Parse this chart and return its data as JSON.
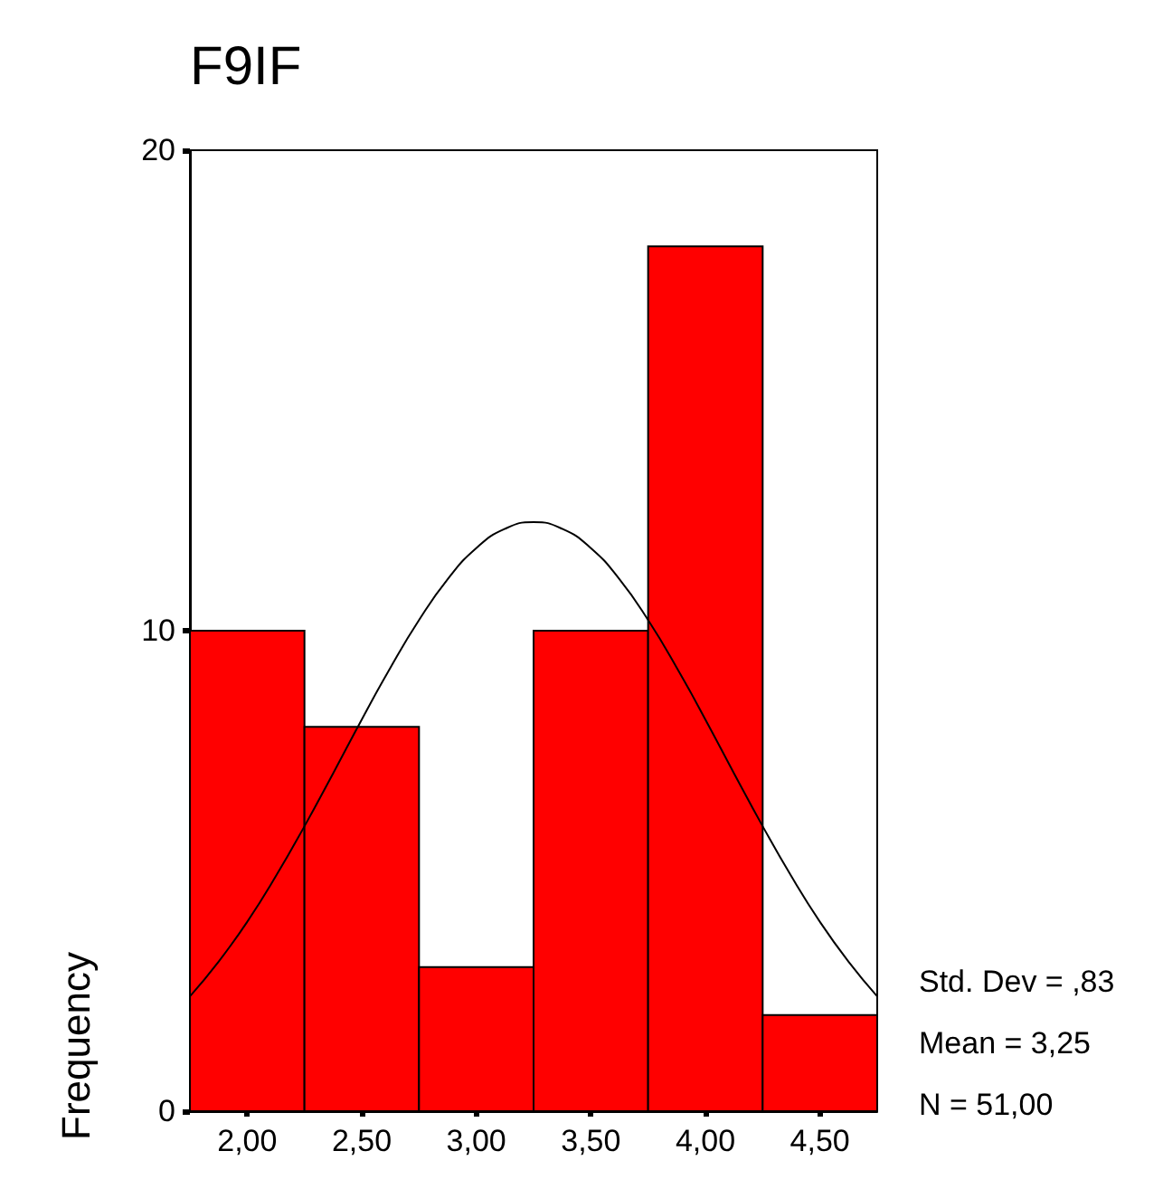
{
  "chart_data": {
    "type": "histogram",
    "title": "F9IF",
    "ylabel": "Frequency",
    "bins": [
      1.75,
      2.25,
      2.75,
      3.25,
      3.75,
      4.25,
      4.75
    ],
    "values": [
      10,
      8,
      3,
      10,
      18,
      2
    ],
    "color": "#ff0000",
    "series": [
      {
        "type": "line",
        "color": "#000000",
        "x": [
          1.75,
          1.875,
          2.0,
          2.125,
          2.25,
          2.375,
          2.5,
          2.625,
          2.75,
          2.875,
          3.0,
          3.125,
          3.25,
          3.375,
          3.5,
          3.625,
          3.75,
          3.875,
          4.0,
          4.125,
          4.25,
          4.375,
          4.5,
          4.625,
          4.75
        ],
        "values": [
          2.39,
          3.11,
          3.94,
          4.89,
          5.93,
          7.03,
          8.15,
          9.23,
          10.22,
          11.07,
          11.72,
          12.12,
          12.26,
          12.12,
          11.72,
          11.07,
          10.22,
          9.23,
          8.15,
          7.03,
          5.93,
          4.89,
          3.94,
          3.11,
          2.39
        ]
      }
    ],
    "xlim": [
      1.75,
      4.75
    ],
    "xticks": [
      {
        "value": 2,
        "label": "2,00"
      },
      {
        "value": 2.5,
        "label": "2,50"
      },
      {
        "value": 3,
        "label": "3,00"
      },
      {
        "value": 3.5,
        "label": "3,50"
      },
      {
        "value": 4,
        "label": "4,00"
      },
      {
        "value": 4.5,
        "label": "4,50"
      }
    ],
    "ylim": [
      0,
      20
    ],
    "yticks": [
      0,
      10,
      20
    ],
    "annotations": [
      "Std. Dev = ,83",
      "Mean = 3,25",
      "N = 51,00"
    ],
    "grid": false,
    "marker": "none",
    "line_style": "solid"
  }
}
